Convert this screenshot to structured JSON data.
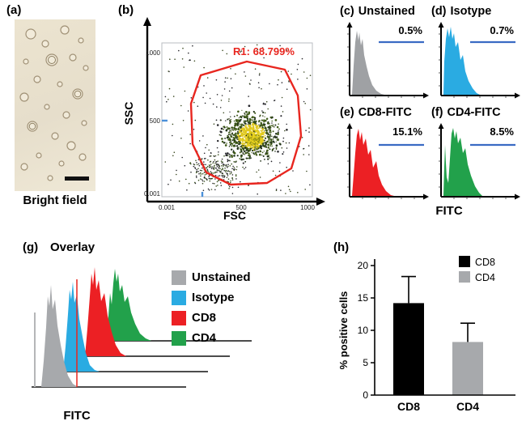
{
  "figure": {
    "panel_a": {
      "label": "(a)",
      "caption": "Bright field"
    },
    "panel_b": {
      "label": "(b)",
      "y_axis": "SSC",
      "x_axis": "FSC",
      "gate": "R1: 68.799%",
      "gate_color": "#e8261f",
      "y_ticks": [
        "1000",
        "500",
        "0.001"
      ],
      "x_ticks": [
        "0.001",
        "500",
        "1000"
      ]
    },
    "panel_c": {
      "label": "(c)",
      "title": "Unstained",
      "value": "0.5%",
      "color": "#9fa1a4"
    },
    "panel_d": {
      "label": "(d)",
      "title": "Isotype",
      "value": "0.7%",
      "color": "#2aabe2"
    },
    "panel_e": {
      "label": "(e)",
      "title": "CD8-FITC",
      "value": "15.1%",
      "color": "#ec2024"
    },
    "panel_f": {
      "label": "(f)",
      "title": "CD4-FITC",
      "value": "8.5%",
      "color": "#22a14b"
    },
    "hist_x_axis": "FITC",
    "panel_g": {
      "label": "(g)",
      "title": "Overlay",
      "x_axis": "FITC",
      "legend": [
        {
          "label": "Unstained",
          "color": "#a7a9ac"
        },
        {
          "label": "Isotype",
          "color": "#2aabe2"
        },
        {
          "label": "CD8",
          "color": "#ec2024"
        },
        {
          "label": "CD4",
          "color": "#22a14b"
        }
      ]
    },
    "panel_h": {
      "label": "(h)"
    }
  },
  "chart_data": {
    "type": "bar",
    "title": "",
    "categories": [
      "CD8",
      "CD4"
    ],
    "values": [
      14.2,
      8.2
    ],
    "errors": [
      4.1,
      2.9
    ],
    "colors": [
      "#000000",
      "#a7a9ac"
    ],
    "xlabel": "",
    "ylabel": "% positive cells",
    "ylim": [
      0,
      20
    ],
    "yticks": [
      0,
      5,
      10,
      15,
      20
    ],
    "grid": false,
    "legend_position": "top-right",
    "legend": [
      {
        "label": "CD8",
        "color": "#000000"
      },
      {
        "label": "CD4",
        "color": "#a7a9ac"
      }
    ]
  }
}
